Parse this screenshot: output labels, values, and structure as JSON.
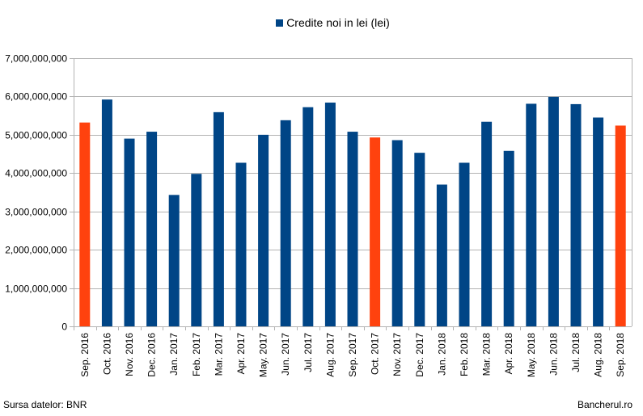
{
  "legend": {
    "label": "Credite noi in lei (lei)"
  },
  "footer": {
    "source": "Sursa datelor: BNR",
    "brand": "Bancherul.ro"
  },
  "colors": {
    "bar": "#004586",
    "highlight": "#ff420e",
    "grid": "#b3b3b3"
  },
  "chart_data": {
    "type": "bar",
    "title": "",
    "xlabel": "",
    "ylabel": "",
    "ylim": [
      0,
      7000000000
    ],
    "yticks": [
      0,
      1000000000,
      2000000000,
      3000000000,
      4000000000,
      5000000000,
      6000000000,
      7000000000
    ],
    "ytick_labels": [
      "0",
      "1,000,000,000",
      "2,000,000,000",
      "3,000,000,000",
      "4,000,000,000",
      "5,000,000,000",
      "6,000,000,000",
      "7,000,000,000"
    ],
    "grid": true,
    "legend_position": "top",
    "categories": [
      "Sep. 2016",
      "Oct. 2016",
      "Nov. 2016",
      "Dec. 2016",
      "Jan. 2017",
      "Feb. 2017",
      "Mar. 2017",
      "Apr. 2017",
      "May. 2017",
      "Jun. 2017",
      "Jul. 2017",
      "Aug. 2017",
      "Sep. 2017",
      "Oct. 2017",
      "Nov. 2017",
      "Dec. 2017",
      "Jan. 2018",
      "Feb. 2018",
      "Mar. 2018",
      "Apr. 2018",
      "May. 2018",
      "Jun. 2018",
      "Jul. 2018",
      "Aug. 2018",
      "Sep. 2018"
    ],
    "series": [
      {
        "name": "Credite noi in lei (lei)",
        "values": [
          5320000000,
          5920000000,
          4900000000,
          5080000000,
          3430000000,
          3980000000,
          5590000000,
          4270000000,
          5000000000,
          5380000000,
          5720000000,
          5840000000,
          5080000000,
          4930000000,
          4860000000,
          4530000000,
          3700000000,
          4270000000,
          5340000000,
          4580000000,
          5810000000,
          5990000000,
          5800000000,
          5450000000,
          5240000000
        ]
      }
    ],
    "highlighted_categories": [
      "Sep. 2016",
      "Oct. 2017",
      "Sep. 2018"
    ]
  }
}
